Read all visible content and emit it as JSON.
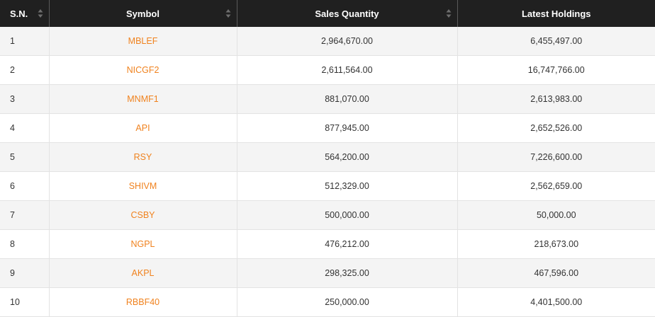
{
  "table": {
    "headers": {
      "sn": "S.N.",
      "symbol": "Symbol",
      "sales_quantity": "Sales Quantity",
      "latest_holdings": "Latest Holdings"
    },
    "colors": {
      "header_bg": "#202020",
      "symbol_link": "#f0821e",
      "row_alt": "#f4f4f4"
    },
    "rows": [
      {
        "sn": "1",
        "symbol": "MBLEF",
        "sales_quantity": "2,964,670.00",
        "latest_holdings": "6,455,497.00"
      },
      {
        "sn": "2",
        "symbol": "NICGF2",
        "sales_quantity": "2,611,564.00",
        "latest_holdings": "16,747,766.00"
      },
      {
        "sn": "3",
        "symbol": "MNMF1",
        "sales_quantity": "881,070.00",
        "latest_holdings": "2,613,983.00"
      },
      {
        "sn": "4",
        "symbol": "API",
        "sales_quantity": "877,945.00",
        "latest_holdings": "2,652,526.00"
      },
      {
        "sn": "5",
        "symbol": "RSY",
        "sales_quantity": "564,200.00",
        "latest_holdings": "7,226,600.00"
      },
      {
        "sn": "6",
        "symbol": "SHIVM",
        "sales_quantity": "512,329.00",
        "latest_holdings": "2,562,659.00"
      },
      {
        "sn": "7",
        "symbol": "CSBY",
        "sales_quantity": "500,000.00",
        "latest_holdings": "50,000.00"
      },
      {
        "sn": "8",
        "symbol": "NGPL",
        "sales_quantity": "476,212.00",
        "latest_holdings": "218,673.00"
      },
      {
        "sn": "9",
        "symbol": "AKPL",
        "sales_quantity": "298,325.00",
        "latest_holdings": "467,596.00"
      },
      {
        "sn": "10",
        "symbol": "RBBF40",
        "sales_quantity": "250,000.00",
        "latest_holdings": "4,401,500.00"
      }
    ]
  }
}
